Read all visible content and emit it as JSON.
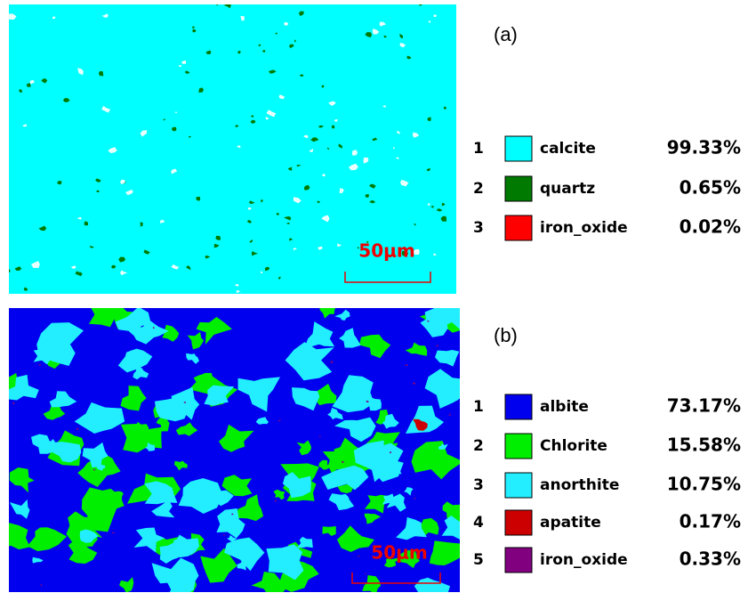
{
  "panels": [
    {
      "label": "(a)",
      "scale_bar": "50μm",
      "legend": [
        {
          "index": 1,
          "name": "calcite",
          "percent": "99.33%",
          "color": "#00ffff"
        },
        {
          "index": 2,
          "name": "quartz",
          "percent": "0.65%",
          "color": "#007a00"
        },
        {
          "index": 3,
          "name": "iron_oxide",
          "percent": "0.02%",
          "color": "#ff0000"
        }
      ]
    },
    {
      "label": "(b)",
      "scale_bar": "50μm",
      "legend": [
        {
          "index": 1,
          "name": "albite",
          "percent": "73.17%",
          "color": "#0000ee"
        },
        {
          "index": 2,
          "name": "Chlorite",
          "percent": "15.58%",
          "color": "#00ee00"
        },
        {
          "index": 3,
          "name": "anorthite",
          "percent": "10.75%",
          "color": "#22eeff"
        },
        {
          "index": 4,
          "name": "apatite",
          "percent": "0.17%",
          "color": "#cc0000"
        },
        {
          "index": 5,
          "name": "iron_oxide",
          "percent": "0.33%",
          "color": "#800080"
        }
      ]
    }
  ]
}
